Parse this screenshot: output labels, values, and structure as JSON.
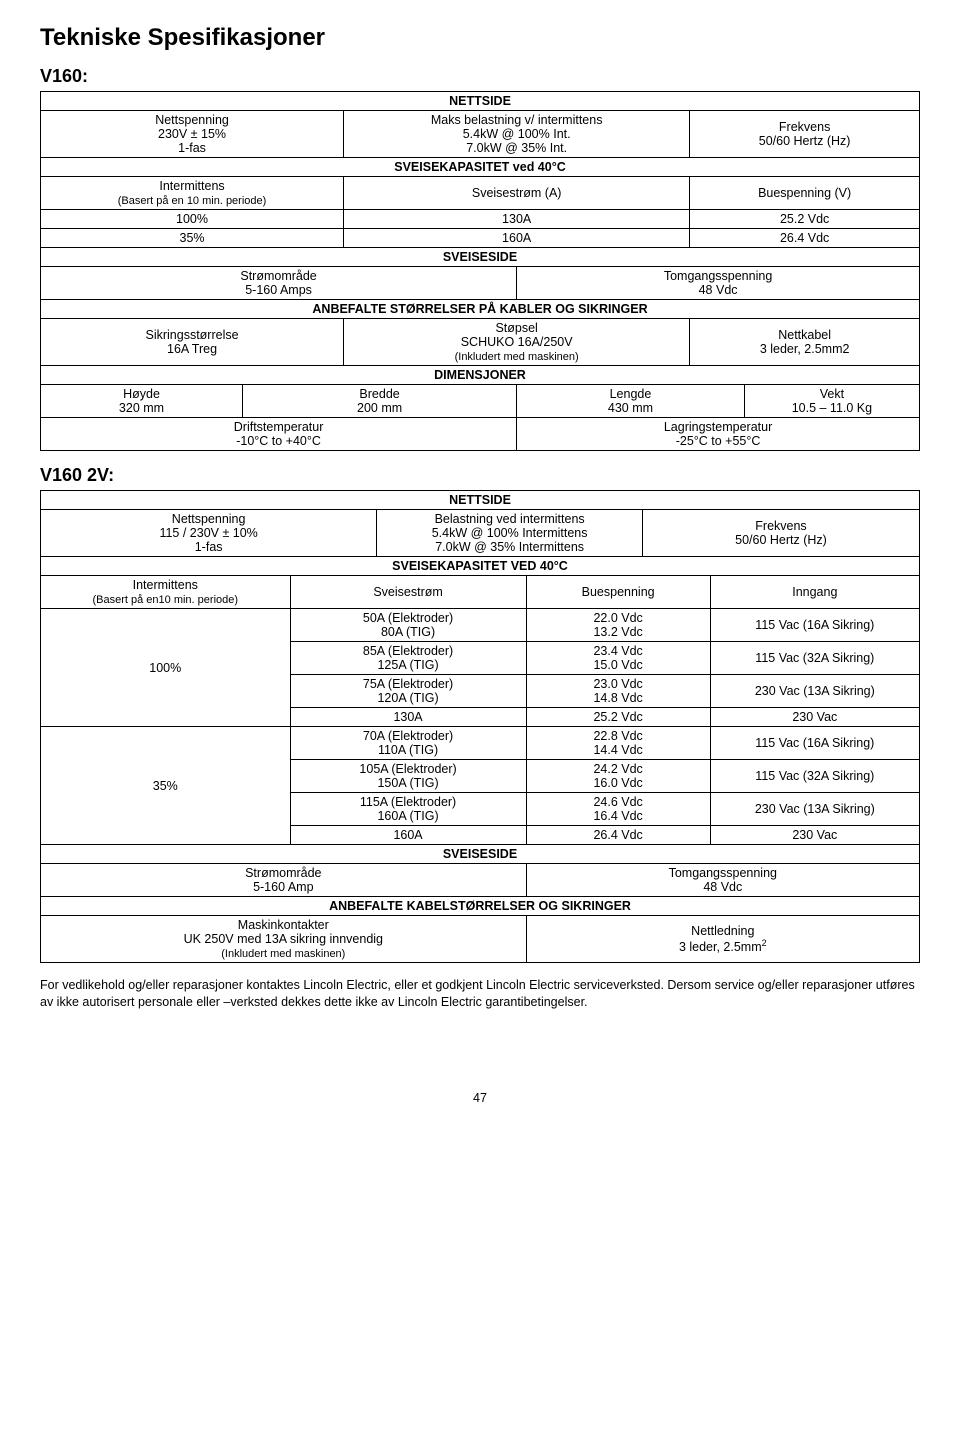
{
  "title": "Tekniske Spesifikasjoner",
  "section1": {
    "heading": "V160:",
    "nettside_header": "NETTSIDE",
    "col1_line1": "Nettspenning",
    "col1_line2": "230V ± 15%",
    "col1_line3": "1-fas",
    "col2_line1": "Maks belastning v/ intermittens",
    "col2_line2": "5.4kW @ 100% Int.",
    "col2_line3": "7.0kW @ 35% Int.",
    "col3_line1": "Frekvens",
    "col3_line2": "50/60 Hertz (Hz)",
    "svkap_header": "SVEISEKAPASITET ved 40°C",
    "inter_label": "Intermittens",
    "inter_sub": "(Basert på en 10 min. periode)",
    "sveise_a": "Sveisestrøm (A)",
    "bues_v": "Buespenning (V)",
    "row100_pct": "100%",
    "row100_a": "130A",
    "row100_v": "25.2 Vdc",
    "row35_pct": "35%",
    "row35_a": "160A",
    "row35_v": "26.4 Vdc",
    "sveiseside_header": "SVEISESIDE",
    "stromomrade_label": "Strømområde",
    "stromomrade_val": "5-160 Amps",
    "tomgang_label": "Tomgangsspenning",
    "tomgang_val": "48 Vdc",
    "anbefalte_header": "ANBEFALTE STØRRELSER PÅ KABLER OG SIKRINGER",
    "sikr_label": "Sikringsstørrelse",
    "sikr_val": "16A Treg",
    "stopsel_label": "Støpsel",
    "stopsel_val": "SCHUKO 16A/250V",
    "stopsel_sub": "(Inkludert med maskinen)",
    "nettkabel_label": "Nettkabel",
    "nettkabel_val": "3 leder, 2.5mm2",
    "dim_header": "DIMENSJONER",
    "hoyde_label": "Høyde",
    "hoyde_val": "320 mm",
    "bredde_label": "Bredde",
    "bredde_val": "200 mm",
    "lengde_label": "Lengde",
    "lengde_val": "430 mm",
    "vekt_label": "Vekt",
    "vekt_val": "10.5 – 11.0 Kg",
    "drift_label": "Driftstemperatur",
    "drift_val": "-10°C to +40°C",
    "lagr_label": "Lagringstemperatur",
    "lagr_val": "-25°C to +55°C"
  },
  "section2": {
    "heading": "V160 2V:",
    "nettside_header": "NETTSIDE",
    "col1_line1": "Nettspenning",
    "col1_line2": "115 / 230V ± 10%",
    "col1_line3": "1-fas",
    "col2_line1": "Belastning ved intermittens",
    "col2_line2": "5.4kW @ 100% Intermittens",
    "col2_line3": "7.0kW @ 35% Intermittens",
    "col3_line1": "Frekvens",
    "col3_line2": "50/60 Hertz (Hz)",
    "svkap_header": "SVEISEKAPASITET VED 40°C",
    "inter_label": "Intermittens",
    "inter_sub": "(Basert på en10 min. periode)",
    "sveise": "Sveisestrøm",
    "bues": "Buespenning",
    "inngang": "Inngang",
    "pct100": "100%",
    "pct35": "35%",
    "rows100": [
      {
        "s1": "50A (Elektroder)",
        "s2": "80A (TIG)",
        "b1": "22.0 Vdc",
        "b2": "13.2 Vdc",
        "in": "115 Vac (16A Sikring)"
      },
      {
        "s1": "85A (Elektroder)",
        "s2": "125A (TIG)",
        "b1": "23.4 Vdc",
        "b2": "15.0 Vdc",
        "in": "115 Vac (32A Sikring)"
      },
      {
        "s1": "75A (Elektroder)",
        "s2": "120A (TIG)",
        "b1": "23.0 Vdc",
        "b2": "14.8 Vdc",
        "in": "230 Vac (13A Sikring)"
      },
      {
        "s1": "130A",
        "b1": "25.2 Vdc",
        "in": "230 Vac"
      }
    ],
    "rows35": [
      {
        "s1": "70A (Elektroder)",
        "s2": "110A (TIG)",
        "b1": "22.8 Vdc",
        "b2": "14.4 Vdc",
        "in": "115 Vac (16A Sikring)"
      },
      {
        "s1": "105A (Elektroder)",
        "s2": "150A (TIG)",
        "b1": "24.2 Vdc",
        "b2": "16.0 Vdc",
        "in": "115 Vac (32A Sikring)"
      },
      {
        "s1": "115A (Elektroder)",
        "s2": "160A (TIG)",
        "b1": "24.6 Vdc",
        "b2": "16.4 Vdc",
        "in": "230 Vac (13A Sikring)"
      },
      {
        "s1": "160A",
        "b1": "26.4 Vdc",
        "in": "230 Vac"
      }
    ],
    "sveiseside_header": "SVEISESIDE",
    "stromomrade_label": "Strømområde",
    "stromomrade_val": "5-160 Amp",
    "tomgang_label": "Tomgangsspenning",
    "tomgang_val": "48 Vdc",
    "anbefalte_header": "ANBEFALTE KABELSTØRRELSER OG SIKRINGER",
    "maskin_label": "Maskinkontakter",
    "maskin_val": "UK 250V med 13A sikring innvendig",
    "maskin_sub": "(Inkludert med maskinen)",
    "nettledning_label": "Nettledning",
    "nettledning_val": "3 leder, 2.5mm"
  },
  "footer_para": "For vedlikehold og/eller reparasjoner kontaktes Lincoln Electric, eller et godkjent Lincoln Electric serviceverksted. Dersom service og/eller reparasjoner utføres av ikke autorisert personale eller –verksted dekkes dette ikke av Lincoln Electric garantibetingelser.",
  "page_number": "47"
}
